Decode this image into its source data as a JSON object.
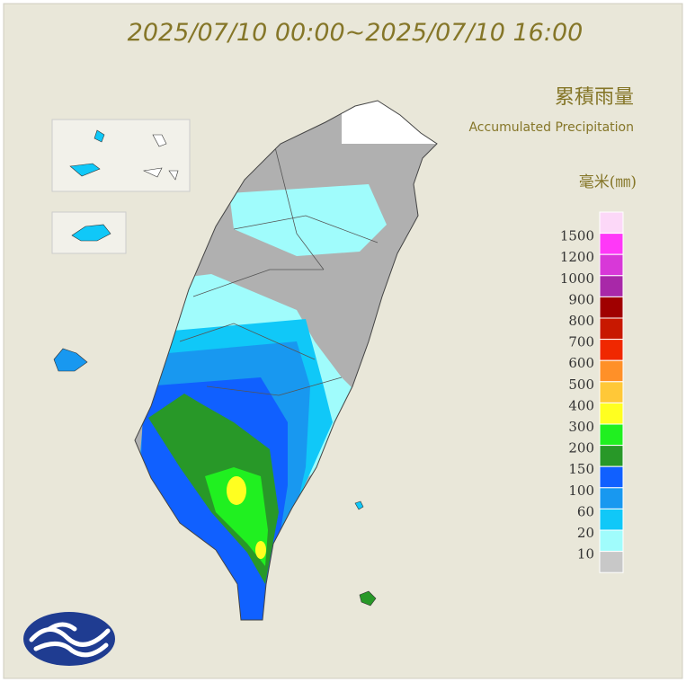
{
  "title": "2025/07/10 00:00~2025/07/10 16:00",
  "heading": {
    "zh": "累積雨量",
    "en": "Accumulated Precipitation"
  },
  "legend": {
    "unit": "毫米(㎜)",
    "top_color": "#fcd8f8",
    "levels": [
      {
        "value": 1500,
        "color": "#ff38f8"
      },
      {
        "value": 1200,
        "color": "#d838d8"
      },
      {
        "value": 1000,
        "color": "#a828a8"
      },
      {
        "value": 900,
        "color": "#a00000"
      },
      {
        "value": 800,
        "color": "#c81800"
      },
      {
        "value": 700,
        "color": "#f02800"
      },
      {
        "value": 600,
        "color": "#ff9028"
      },
      {
        "value": 500,
        "color": "#ffc838"
      },
      {
        "value": 400,
        "color": "#ffff20"
      },
      {
        "value": 300,
        "color": "#20f020"
      },
      {
        "value": 200,
        "color": "#289828"
      },
      {
        "value": 150,
        "color": "#1060ff"
      },
      {
        "value": 100,
        "color": "#1898f0"
      },
      {
        "value": 60,
        "color": "#10c8f8"
      },
      {
        "value": 20,
        "color": "#a0fcfc"
      },
      {
        "value": 10,
        "color": "#c8c8c8"
      }
    ]
  }
}
